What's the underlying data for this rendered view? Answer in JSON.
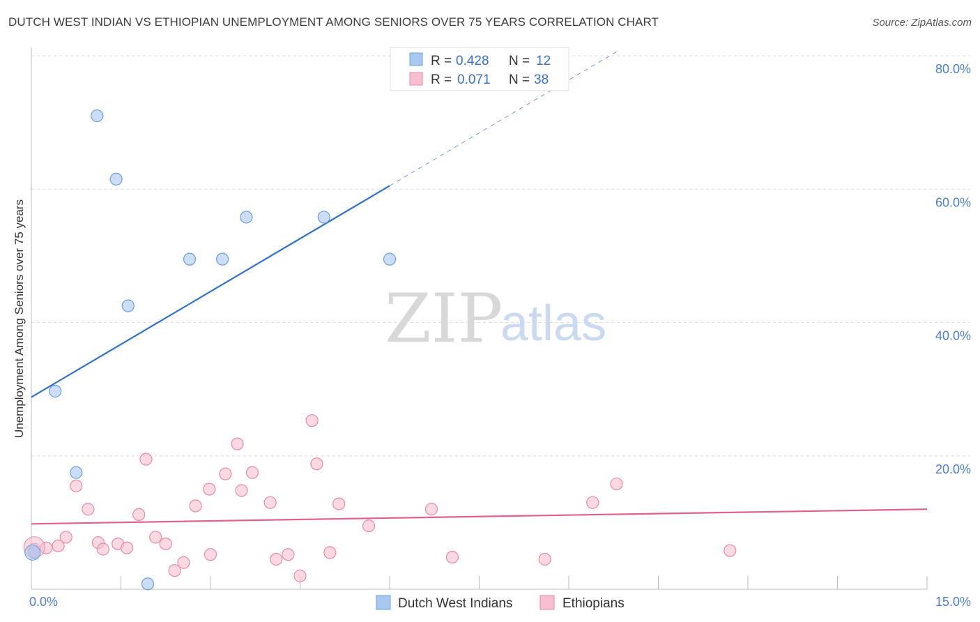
{
  "chart_data": {
    "type": "scatter",
    "title": "DUTCH WEST INDIAN VS ETHIOPIAN UNEMPLOYMENT AMONG SENIORS OVER 75 YEARS CORRELATION CHART",
    "source": "Source: ZipAtlas.com",
    "ylabel": "Unemployment Among Seniors over 75 years",
    "xlim": [
      0,
      15
    ],
    "ylim": [
      0,
      80
    ],
    "x_tick_labels": [
      "0.0%",
      "15.0%"
    ],
    "y_tick_labels": [
      "20.0%",
      "40.0%",
      "60.0%",
      "80.0%"
    ],
    "y_tick_values": [
      20,
      40,
      60,
      80
    ],
    "watermark": {
      "zip": "ZIP",
      "atlas": "atlas"
    },
    "legend": {
      "rows": [
        {
          "r_label": "R = ",
          "r_value": "0.428",
          "n_label": "N = ",
          "n_value": "12"
        },
        {
          "r_label": "R = ",
          "r_value": "0.071",
          "n_label": "N = ",
          "n_value": "38"
        }
      ]
    },
    "series": [
      {
        "name": "Dutch West Indians",
        "color": "#a9c8ef",
        "edge": "#6d9fdc",
        "line_color": "#2f72c9",
        "trend": {
          "x0": 0.0,
          "y0": 28.8,
          "x1": 6.0,
          "y1": 60.5,
          "dash_to_x": 9.8,
          "dash_to_y": 80.6
        },
        "points": [
          [
            0.05,
            5.5
          ],
          [
            0.4,
            29.7
          ],
          [
            0.75,
            17.5
          ],
          [
            1.1,
            71.0
          ],
          [
            1.42,
            61.5
          ],
          [
            1.62,
            42.5
          ],
          [
            1.95,
            0.8
          ],
          [
            2.65,
            49.5
          ],
          [
            3.2,
            49.5
          ],
          [
            3.6,
            55.8
          ],
          [
            4.9,
            55.8
          ],
          [
            6.0,
            49.5
          ]
        ]
      },
      {
        "name": "Ethiopians",
        "color": "#f7bfd0",
        "edge": "#e98aa8",
        "line_color": "#e2608a",
        "trend": {
          "x0": 0.0,
          "y0": 9.8,
          "x1": 15.0,
          "y1": 12.0
        },
        "points": [
          [
            0.05,
            6.0
          ],
          [
            0.25,
            6.2
          ],
          [
            0.45,
            6.5
          ],
          [
            0.58,
            7.8
          ],
          [
            0.75,
            15.5
          ],
          [
            0.95,
            12.0
          ],
          [
            1.12,
            7.0
          ],
          [
            1.2,
            6.0
          ],
          [
            1.45,
            6.8
          ],
          [
            1.6,
            6.2
          ],
          [
            1.8,
            11.2
          ],
          [
            1.92,
            19.5
          ],
          [
            2.08,
            7.8
          ],
          [
            2.25,
            6.8
          ],
          [
            2.4,
            2.8
          ],
          [
            2.55,
            4.0
          ],
          [
            2.75,
            12.5
          ],
          [
            2.98,
            15.0
          ],
          [
            3.0,
            5.2
          ],
          [
            3.25,
            17.3
          ],
          [
            3.45,
            21.8
          ],
          [
            3.52,
            14.8
          ],
          [
            3.7,
            17.5
          ],
          [
            4.0,
            13.0
          ],
          [
            4.1,
            4.5
          ],
          [
            4.3,
            5.2
          ],
          [
            4.5,
            2.0
          ],
          [
            4.7,
            25.3
          ],
          [
            4.78,
            18.8
          ],
          [
            5.0,
            5.5
          ],
          [
            5.15,
            12.8
          ],
          [
            5.65,
            9.5
          ],
          [
            6.7,
            12.0
          ],
          [
            7.05,
            4.8
          ],
          [
            8.6,
            4.5
          ],
          [
            9.4,
            13.0
          ],
          [
            9.8,
            15.8
          ],
          [
            11.7,
            5.8
          ]
        ]
      }
    ]
  }
}
